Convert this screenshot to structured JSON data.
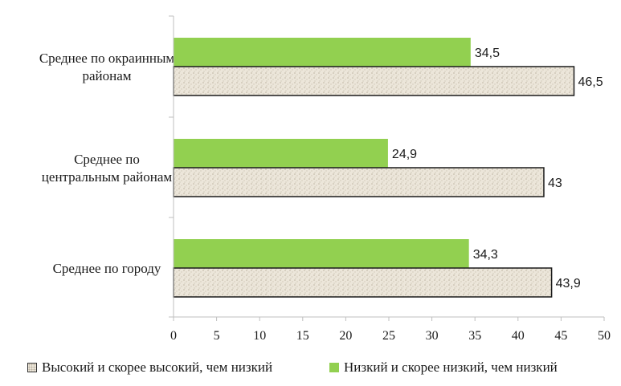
{
  "chart_data": {
    "type": "bar",
    "orientation": "horizontal",
    "categories": [
      [
        "Среднее по окраинным",
        "районам"
      ],
      [
        "Среднее по",
        "центральным районам"
      ],
      [
        "Среднее по городу"
      ]
    ],
    "series": [
      {
        "name": "Низкий и скорее низкий, чем низкий",
        "color": "#92d050",
        "pattern": "none",
        "values": [
          34.5,
          24.9,
          34.3
        ],
        "labels": [
          "34,5",
          "24,9",
          "34,3"
        ]
      },
      {
        "name": "Высокий и скорее высокий, чем низкий",
        "color": "#ece6da",
        "pattern": "speckled",
        "values": [
          46.5,
          43,
          43.9
        ],
        "labels": [
          "46,5",
          "43",
          "43,9"
        ]
      }
    ],
    "xlim": [
      0,
      50
    ],
    "xticks": [
      0,
      5,
      10,
      15,
      20,
      25,
      30,
      35,
      40,
      45,
      50
    ],
    "grid": false,
    "legend_position": "bottom",
    "legend_order": [
      1,
      0
    ]
  }
}
